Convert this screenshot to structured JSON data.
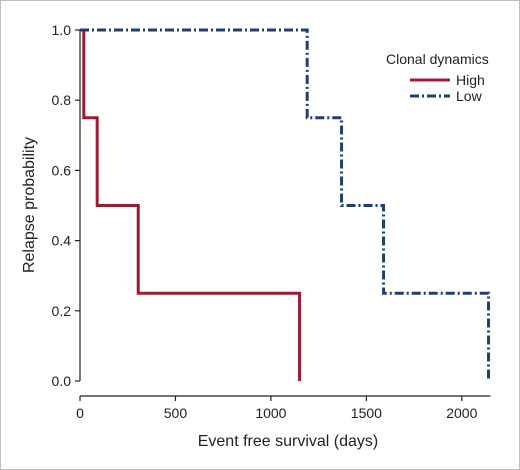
{
  "chart_data": {
    "type": "line",
    "step": true,
    "xlabel": "Event free survival (days)",
    "ylabel": "Relapse probability",
    "xlim": [
      0,
      2200
    ],
    "ylim": [
      0,
      1.0
    ],
    "x_ticks": [
      0,
      500,
      1000,
      1500,
      2000
    ],
    "y_ticks": [
      0.0,
      0.2,
      0.4,
      0.6,
      0.8,
      1.0
    ],
    "x_tick_labels": [
      "0",
      "500",
      "1000",
      "1500",
      "2000"
    ],
    "y_tick_labels": [
      "0.0",
      "0.2",
      "0.4",
      "0.6",
      "0.8",
      "1.0"
    ],
    "grid": false,
    "legend": {
      "title": "Clonal dynamics",
      "placement": "top-right"
    },
    "series": [
      {
        "name": "High",
        "color": "#9e1b32",
        "style": "solid",
        "x": [
          0,
          20,
          20,
          90,
          90,
          305,
          305,
          1150,
          1150
        ],
        "y": [
          1.0,
          1.0,
          0.75,
          0.75,
          0.5,
          0.5,
          0.25,
          0.25,
          0.0
        ]
      },
      {
        "name": "Low",
        "color": "#1f3f73",
        "style": "dashdot",
        "x": [
          0,
          1190,
          1190,
          1370,
          1370,
          1590,
          1590,
          2140,
          2140
        ],
        "y": [
          1.0,
          1.0,
          0.75,
          0.75,
          0.5,
          0.5,
          0.25,
          0.25,
          0.0
        ]
      }
    ]
  }
}
